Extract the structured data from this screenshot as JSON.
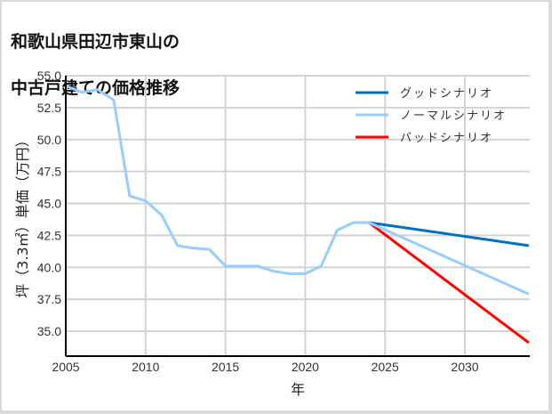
{
  "title": "和歌山県田辺市東山の\n中古戸建ての価格推移",
  "title_lines": [
    "和歌山県田辺市東山の",
    "中古戸建ての価格推移"
  ],
  "chart_data": {
    "type": "line",
    "title": "和歌山県田辺市東山の中古戸建ての価格推移",
    "xlabel": "年",
    "ylabel": "坪（3.3㎡）単価（万円）",
    "xlim": [
      2005,
      2034
    ],
    "ylim": [
      33.1,
      55.0
    ],
    "x_ticks": [
      2005,
      2010,
      2015,
      2020,
      2025,
      2030
    ],
    "y_ticks": [
      35.0,
      37.5,
      40.0,
      42.5,
      45.0,
      47.5,
      50.0,
      52.5,
      55.0
    ],
    "y_tick_labels": [
      "35.0",
      "37.5",
      "40.0",
      "42.5",
      "45.0",
      "47.5",
      "50.0",
      "52.5",
      "55.0"
    ],
    "grid": true,
    "legend_position": "upper right",
    "series": [
      {
        "name": "グッドシナリオ",
        "color": "#0070c0",
        "x": [
          2024,
          2034
        ],
        "values": [
          43.5,
          41.7
        ]
      },
      {
        "name": "ノーマルシナリオ",
        "color": "#99ccff",
        "x": [
          2005,
          2006,
          2007,
          2008,
          2009,
          2010,
          2011,
          2012,
          2013,
          2014,
          2015,
          2016,
          2017,
          2018,
          2019,
          2020,
          2021,
          2022,
          2023,
          2024,
          2034
        ],
        "values": [
          54.2,
          53.7,
          53.9,
          53.1,
          45.6,
          45.2,
          44.1,
          41.7,
          41.5,
          41.4,
          40.1,
          40.1,
          40.1,
          39.7,
          39.5,
          39.5,
          40.1,
          42.9,
          43.5,
          43.5,
          37.9
        ]
      },
      {
        "name": "バッドシナリオ",
        "color": "#ff0000",
        "x": [
          2024,
          2034
        ],
        "values": [
          43.5,
          34.1
        ]
      }
    ]
  }
}
